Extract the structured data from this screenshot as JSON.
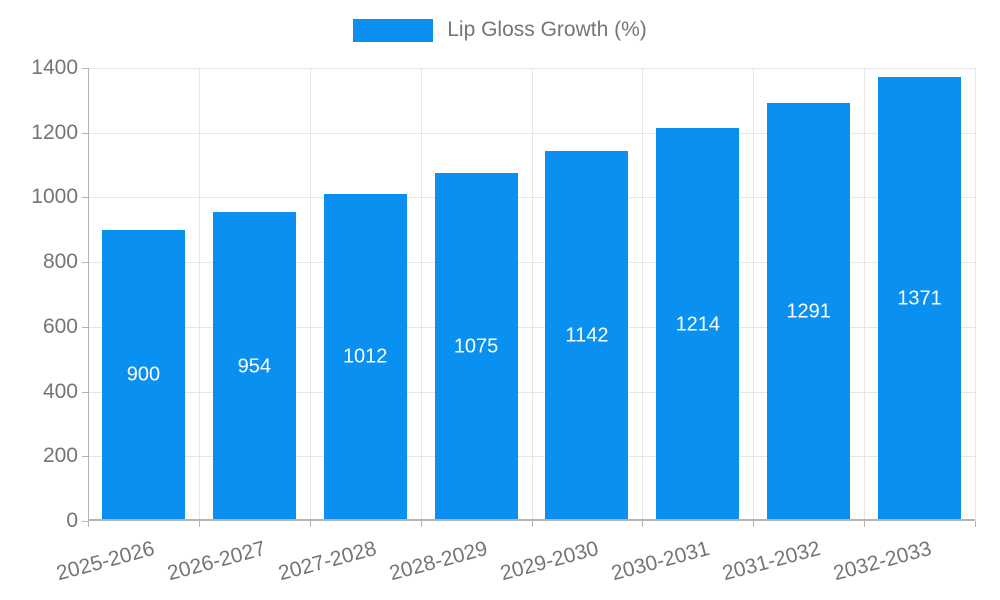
{
  "legend": {
    "label": "Lip Gloss Growth (%)"
  },
  "colors": {
    "bar": "#0a90f0",
    "bar_label": "#ffffff",
    "axis_text": "#757575",
    "grid": "#e6e6e6",
    "axis_line": "#b3b3b3",
    "background": "#ffffff"
  },
  "chart_data": {
    "type": "bar",
    "title": "Lip Gloss Growth (%)",
    "series_name": "Lip Gloss Growth (%)",
    "categories": [
      "2025-2026",
      "2026-2027",
      "2027-2028",
      "2028-2029",
      "2029-2030",
      "2030-2031",
      "2031-2032",
      "2032-2033"
    ],
    "values": [
      900,
      954,
      1012,
      1075,
      1142,
      1214,
      1291,
      1371
    ],
    "bar_value_labels": [
      "900",
      "954",
      "1012",
      "1075",
      "1142",
      "1214",
      "1291",
      "1371"
    ],
    "xlabel": "",
    "ylabel": "",
    "ylim": [
      0,
      1400
    ],
    "yticks": [
      0,
      200,
      400,
      600,
      800,
      1000,
      1200,
      1400
    ],
    "grid": true,
    "legend_position": "top",
    "value_label_position": "inside-center",
    "x_label_rotation_deg": -15
  }
}
